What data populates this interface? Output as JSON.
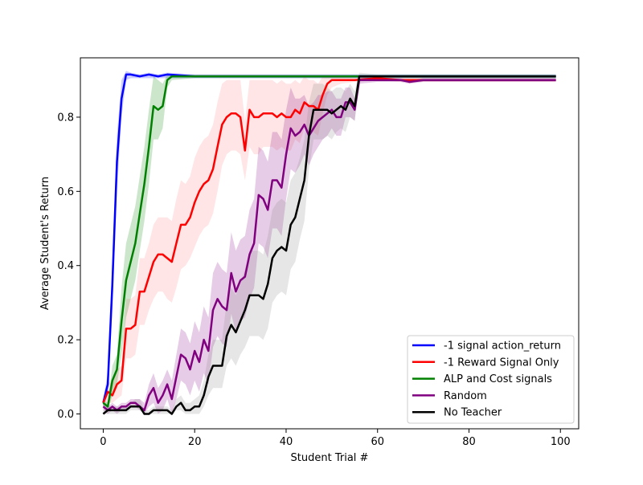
{
  "chart_data": {
    "type": "line",
    "title": "",
    "xlabel": "Student Trial #",
    "ylabel": "Average Student's Return",
    "xlim": [
      -5,
      104
    ],
    "ylim": [
      -0.04,
      0.96
    ],
    "x_ticks": [
      0,
      20,
      40,
      60,
      80,
      100
    ],
    "y_ticks": [
      0.0,
      0.2,
      0.4,
      0.6,
      0.8
    ],
    "x_tick_labels": [
      "0",
      "20",
      "40",
      "60",
      "80",
      "100"
    ],
    "y_tick_labels": [
      "0.0",
      "0.2",
      "0.4",
      "0.6",
      "0.8"
    ],
    "grid": false,
    "legend_position": "lower-right",
    "shaded_bands": true,
    "series": [
      {
        "name": "-1 signal action_return",
        "color": "#0000ff",
        "band_color": "#0000ff",
        "x": [
          0,
          1,
          2,
          3,
          4,
          5,
          6,
          8,
          10,
          12,
          14,
          20,
          30,
          40,
          50,
          60,
          70,
          80,
          90,
          99
        ],
        "y": [
          0.03,
          0.08,
          0.35,
          0.68,
          0.85,
          0.915,
          0.915,
          0.91,
          0.915,
          0.91,
          0.915,
          0.91,
          0.91,
          0.91,
          0.91,
          0.91,
          0.91,
          0.91,
          0.91,
          0.91
        ],
        "lower": [
          0.02,
          0.05,
          0.28,
          0.6,
          0.8,
          0.9,
          0.905,
          0.905,
          0.905,
          0.905,
          0.905,
          0.905,
          0.905,
          0.905,
          0.905,
          0.905,
          0.905,
          0.905,
          0.905,
          0.905
        ],
        "upper": [
          0.04,
          0.11,
          0.42,
          0.75,
          0.9,
          0.925,
          0.92,
          0.915,
          0.92,
          0.915,
          0.92,
          0.915,
          0.915,
          0.915,
          0.915,
          0.915,
          0.915,
          0.915,
          0.915,
          0.915
        ]
      },
      {
        "name": "-1 Reward Signal Only",
        "color": "#ff0000",
        "band_color": "#ff7f7f",
        "x": [
          0,
          1,
          2,
          3,
          4,
          5,
          6,
          7,
          8,
          9,
          10,
          11,
          12,
          13,
          14,
          15,
          16,
          17,
          18,
          19,
          20,
          21,
          22,
          23,
          24,
          25,
          26,
          27,
          28,
          29,
          30,
          31,
          32,
          33,
          34,
          35,
          36,
          37,
          38,
          39,
          40,
          41,
          42,
          43,
          44,
          45,
          46,
          47,
          48,
          49,
          50,
          52,
          55,
          60,
          65,
          70,
          75,
          80,
          85,
          90,
          95,
          99
        ],
        "y": [
          0.03,
          0.06,
          0.05,
          0.08,
          0.09,
          0.23,
          0.23,
          0.24,
          0.33,
          0.33,
          0.37,
          0.41,
          0.43,
          0.43,
          0.42,
          0.41,
          0.46,
          0.51,
          0.51,
          0.53,
          0.57,
          0.6,
          0.62,
          0.63,
          0.66,
          0.72,
          0.78,
          0.8,
          0.81,
          0.81,
          0.8,
          0.71,
          0.82,
          0.8,
          0.8,
          0.81,
          0.81,
          0.81,
          0.8,
          0.81,
          0.8,
          0.8,
          0.82,
          0.81,
          0.84,
          0.83,
          0.83,
          0.82,
          0.86,
          0.89,
          0.9,
          0.9,
          0.9,
          0.905,
          0.9,
          0.9,
          0.9,
          0.9,
          0.9,
          0.9,
          0.9,
          0.9
        ],
        "lower": [
          0.02,
          0.03,
          0.03,
          0.04,
          0.05,
          0.15,
          0.15,
          0.16,
          0.24,
          0.24,
          0.28,
          0.31,
          0.33,
          0.33,
          0.31,
          0.3,
          0.34,
          0.39,
          0.4,
          0.42,
          0.45,
          0.48,
          0.5,
          0.51,
          0.54,
          0.6,
          0.67,
          0.7,
          0.71,
          0.71,
          0.7,
          0.63,
          0.72,
          0.7,
          0.7,
          0.72,
          0.72,
          0.72,
          0.71,
          0.72,
          0.71,
          0.71,
          0.74,
          0.73,
          0.77,
          0.76,
          0.76,
          0.75,
          0.81,
          0.86,
          0.88,
          0.89,
          0.895,
          0.9,
          0.895,
          0.895,
          0.895,
          0.895,
          0.895,
          0.895,
          0.895,
          0.895
        ],
        "upper": [
          0.04,
          0.09,
          0.08,
          0.12,
          0.13,
          0.31,
          0.31,
          0.32,
          0.42,
          0.42,
          0.46,
          0.51,
          0.53,
          0.53,
          0.53,
          0.52,
          0.58,
          0.63,
          0.62,
          0.64,
          0.69,
          0.72,
          0.74,
          0.75,
          0.78,
          0.84,
          0.89,
          0.9,
          0.9,
          0.9,
          0.9,
          0.79,
          0.9,
          0.9,
          0.9,
          0.9,
          0.9,
          0.9,
          0.89,
          0.9,
          0.89,
          0.89,
          0.9,
          0.89,
          0.91,
          0.9,
          0.9,
          0.89,
          0.91,
          0.91,
          0.91,
          0.91,
          0.905,
          0.91,
          0.905,
          0.905,
          0.905,
          0.905,
          0.905,
          0.905,
          0.905,
          0.905
        ]
      },
      {
        "name": "ALP and Cost signals",
        "color": "#008000",
        "band_color": "#008000",
        "x": [
          0,
          1,
          2,
          3,
          4,
          5,
          6,
          7,
          8,
          9,
          10,
          11,
          12,
          13,
          14,
          15,
          20,
          30,
          40,
          50,
          60,
          70,
          80,
          90,
          99
        ],
        "y": [
          0.03,
          0.02,
          0.09,
          0.12,
          0.25,
          0.36,
          0.41,
          0.46,
          0.54,
          0.62,
          0.72,
          0.83,
          0.82,
          0.83,
          0.9,
          0.91,
          0.91,
          0.91,
          0.91,
          0.91,
          0.91,
          0.91,
          0.91,
          0.91,
          0.91
        ],
        "lower": [
          0.02,
          0.01,
          0.05,
          0.08,
          0.16,
          0.26,
          0.31,
          0.36,
          0.44,
          0.52,
          0.62,
          0.74,
          0.74,
          0.77,
          0.88,
          0.9,
          0.905,
          0.905,
          0.905,
          0.905,
          0.905,
          0.905,
          0.905,
          0.905,
          0.905
        ],
        "upper": [
          0.04,
          0.03,
          0.13,
          0.16,
          0.34,
          0.46,
          0.51,
          0.56,
          0.64,
          0.72,
          0.82,
          0.91,
          0.9,
          0.89,
          0.915,
          0.915,
          0.915,
          0.915,
          0.915,
          0.915,
          0.915,
          0.915,
          0.915,
          0.915,
          0.915
        ]
      },
      {
        "name": "Random",
        "color": "#800080",
        "band_color": "#800080",
        "x": [
          0,
          1,
          2,
          3,
          4,
          5,
          6,
          7,
          8,
          9,
          10,
          11,
          12,
          13,
          14,
          15,
          16,
          17,
          18,
          19,
          20,
          21,
          22,
          23,
          24,
          25,
          26,
          27,
          28,
          29,
          30,
          31,
          32,
          33,
          34,
          35,
          36,
          37,
          38,
          39,
          40,
          41,
          42,
          43,
          44,
          45,
          46,
          47,
          48,
          49,
          50,
          51,
          52,
          53,
          54,
          55,
          56,
          60,
          65,
          67,
          70,
          75,
          80,
          85,
          90,
          95,
          99
        ],
        "y": [
          0.02,
          0.01,
          0.02,
          0.01,
          0.02,
          0.02,
          0.03,
          0.03,
          0.02,
          0.01,
          0.05,
          0.07,
          0.03,
          0.05,
          0.08,
          0.04,
          0.1,
          0.16,
          0.15,
          0.12,
          0.17,
          0.14,
          0.2,
          0.17,
          0.28,
          0.31,
          0.29,
          0.28,
          0.38,
          0.33,
          0.36,
          0.37,
          0.43,
          0.46,
          0.59,
          0.58,
          0.55,
          0.63,
          0.63,
          0.61,
          0.7,
          0.77,
          0.75,
          0.76,
          0.78,
          0.75,
          0.77,
          0.79,
          0.8,
          0.81,
          0.82,
          0.8,
          0.8,
          0.84,
          0.84,
          0.82,
          0.9,
          0.9,
          0.9,
          0.895,
          0.9,
          0.9,
          0.9,
          0.9,
          0.9,
          0.9,
          0.9
        ],
        "lower": [
          0.01,
          0.0,
          0.01,
          0.0,
          0.01,
          0.01,
          0.02,
          0.02,
          0.01,
          0.0,
          0.02,
          0.03,
          0.0,
          0.01,
          0.04,
          0.0,
          0.04,
          0.09,
          0.08,
          0.05,
          0.09,
          0.06,
          0.11,
          0.08,
          0.18,
          0.21,
          0.19,
          0.18,
          0.27,
          0.22,
          0.25,
          0.26,
          0.31,
          0.34,
          0.46,
          0.45,
          0.42,
          0.5,
          0.5,
          0.48,
          0.58,
          0.66,
          0.65,
          0.67,
          0.7,
          0.67,
          0.7,
          0.72,
          0.74,
          0.75,
          0.77,
          0.75,
          0.75,
          0.8,
          0.8,
          0.79,
          0.89,
          0.895,
          0.895,
          0.89,
          0.895,
          0.895,
          0.895,
          0.895,
          0.895,
          0.895,
          0.895
        ],
        "upper": [
          0.03,
          0.02,
          0.03,
          0.02,
          0.03,
          0.03,
          0.04,
          0.04,
          0.04,
          0.03,
          0.08,
          0.11,
          0.07,
          0.09,
          0.12,
          0.09,
          0.16,
          0.23,
          0.22,
          0.19,
          0.25,
          0.22,
          0.29,
          0.26,
          0.38,
          0.41,
          0.39,
          0.38,
          0.49,
          0.44,
          0.47,
          0.48,
          0.55,
          0.58,
          0.72,
          0.71,
          0.68,
          0.76,
          0.76,
          0.74,
          0.82,
          0.88,
          0.85,
          0.85,
          0.86,
          0.83,
          0.84,
          0.86,
          0.86,
          0.87,
          0.87,
          0.85,
          0.85,
          0.88,
          0.88,
          0.85,
          0.91,
          0.905,
          0.905,
          0.9,
          0.905,
          0.905,
          0.905,
          0.905,
          0.905,
          0.905,
          0.905
        ]
      },
      {
        "name": "No Teacher",
        "color": "#000000",
        "band_color": "#808080",
        "x": [
          0,
          1,
          2,
          3,
          4,
          5,
          6,
          7,
          8,
          9,
          10,
          11,
          12,
          13,
          14,
          15,
          16,
          17,
          18,
          19,
          20,
          21,
          22,
          23,
          24,
          25,
          26,
          27,
          28,
          29,
          30,
          31,
          32,
          33,
          34,
          35,
          36,
          37,
          38,
          39,
          40,
          41,
          42,
          43,
          44,
          45,
          46,
          47,
          48,
          49,
          50,
          51,
          52,
          53,
          54,
          55,
          56,
          60,
          65,
          70,
          75,
          80,
          85,
          90,
          95,
          99
        ],
        "y": [
          0.0,
          0.01,
          0.01,
          0.01,
          0.01,
          0.01,
          0.02,
          0.02,
          0.02,
          0.0,
          0.0,
          0.01,
          0.01,
          0.01,
          0.01,
          0.0,
          0.02,
          0.03,
          0.01,
          0.01,
          0.02,
          0.02,
          0.05,
          0.1,
          0.13,
          0.13,
          0.13,
          0.21,
          0.24,
          0.22,
          0.25,
          0.28,
          0.32,
          0.32,
          0.32,
          0.31,
          0.35,
          0.42,
          0.44,
          0.45,
          0.44,
          0.51,
          0.53,
          0.58,
          0.63,
          0.75,
          0.82,
          0.82,
          0.82,
          0.82,
          0.81,
          0.82,
          0.83,
          0.82,
          0.85,
          0.83,
          0.91,
          0.91,
          0.91,
          0.91,
          0.91,
          0.91,
          0.91,
          0.91,
          0.91,
          0.91
        ],
        "lower": [
          0.0,
          0.0,
          0.0,
          0.0,
          0.0,
          0.0,
          0.01,
          0.01,
          0.01,
          0.0,
          0.0,
          0.0,
          0.0,
          0.0,
          0.0,
          0.0,
          0.01,
          0.01,
          0.0,
          0.0,
          0.0,
          0.0,
          0.02,
          0.05,
          0.07,
          0.07,
          0.07,
          0.13,
          0.15,
          0.13,
          0.16,
          0.18,
          0.21,
          0.21,
          0.21,
          0.2,
          0.23,
          0.3,
          0.32,
          0.33,
          0.32,
          0.39,
          0.41,
          0.47,
          0.52,
          0.66,
          0.74,
          0.74,
          0.74,
          0.75,
          0.74,
          0.76,
          0.77,
          0.76,
          0.8,
          0.79,
          0.9,
          0.905,
          0.905,
          0.905,
          0.905,
          0.905,
          0.905,
          0.905,
          0.905,
          0.905
        ],
        "upper": [
          0.01,
          0.02,
          0.02,
          0.02,
          0.02,
          0.02,
          0.03,
          0.04,
          0.04,
          0.01,
          0.01,
          0.02,
          0.02,
          0.02,
          0.02,
          0.01,
          0.04,
          0.05,
          0.03,
          0.03,
          0.04,
          0.05,
          0.09,
          0.16,
          0.2,
          0.2,
          0.2,
          0.3,
          0.34,
          0.32,
          0.35,
          0.39,
          0.44,
          0.44,
          0.44,
          0.43,
          0.48,
          0.55,
          0.57,
          0.58,
          0.57,
          0.63,
          0.65,
          0.69,
          0.74,
          0.84,
          0.89,
          0.89,
          0.89,
          0.88,
          0.87,
          0.88,
          0.88,
          0.87,
          0.89,
          0.87,
          0.92,
          0.915,
          0.915,
          0.915,
          0.915,
          0.915,
          0.915,
          0.915,
          0.915,
          0.915
        ]
      }
    ]
  }
}
